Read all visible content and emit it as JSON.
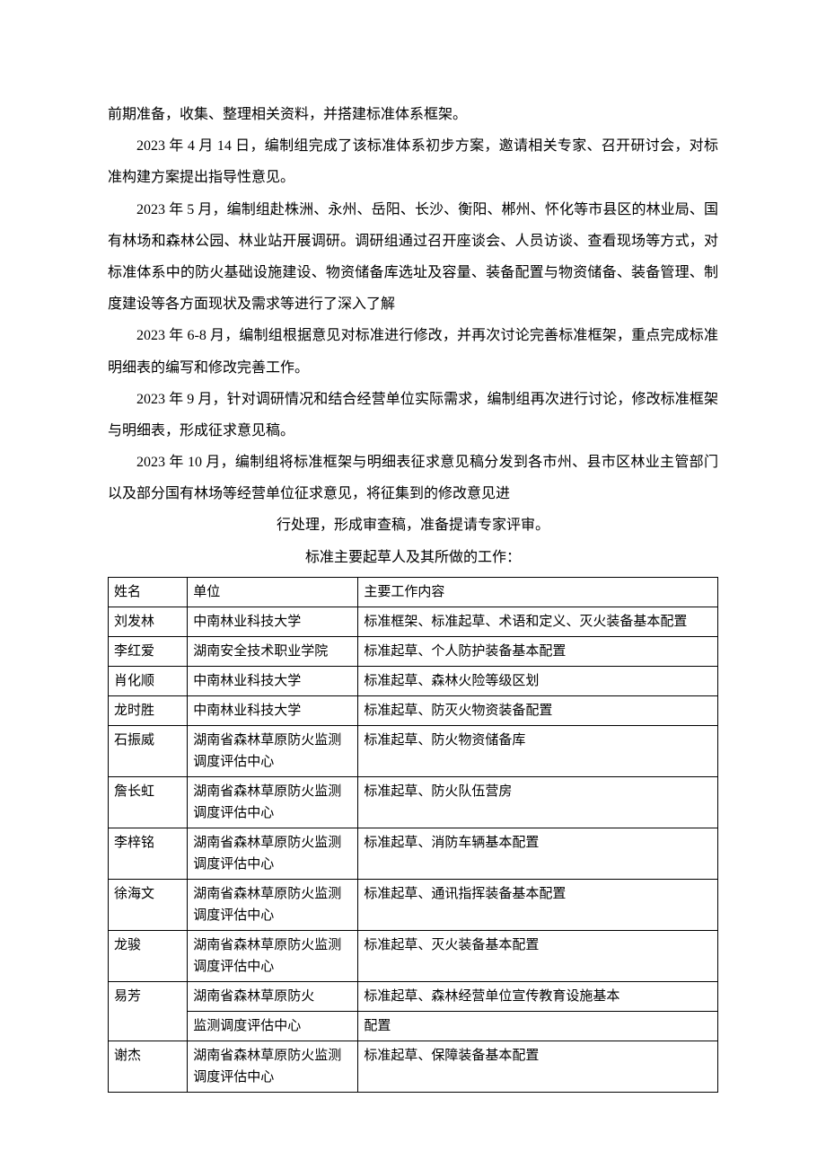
{
  "paragraphs": {
    "p0": "前期准备，收集、整理相关资料，并搭建标准体系框架。",
    "p1": "2023 年 4 月 14 日，编制组完成了该标准体系初步方案，邀请相关专家、召开研讨会，对标准构建方案提出指导性意见。",
    "p2": "2023 年 5 月，编制组赴株洲、永州、岳阳、长沙、衡阳、郴州、怀化等市县区的林业局、国有林场和森林公园、林业站开展调研。调研组通过召开座谈会、人员访谈、查看现场等方式，对标准体系中的防火基础设施建设、物资储备库选址及容量、装备配置与物资储备、装备管理、制度建设等各方面现状及需求等进行了深入了解",
    "p3": "2023 年 6-8 月，编制组根据意见对标准进行修改，并再次讨论完善标准框架，重点完成标准明细表的编写和修改完善工作。",
    "p4": "2023 年 9 月，针对调研情况和结合经营单位实际需求，编制组再次进行讨论，修改标准框架与明细表，形成征求意见稿。",
    "p5": "2023 年 10 月，编制组将标准框架与明细表征求意见稿分发到各市州、县市区林业主管部门以及部分国有林场等经营单位征求意见，将征集到的修改意见进",
    "p6": "行处理，形成审查稿，准备提请专家评审。",
    "p7": "标准主要起草人及其所做的工作："
  },
  "table": {
    "headers": {
      "name": "姓名",
      "unit": "单位",
      "work": "主要工作内容"
    },
    "rows": [
      {
        "name": "刘发林",
        "unit": "中南林业科技大学",
        "work": "标准框架、标准起草、术语和定义、灭火装备基本配置",
        "twoLine": true
      },
      {
        "name": "李红爱",
        "unit": "湖南安全技术职业学院",
        "work": "标准起草、个人防护装备基本配置",
        "twoLine": true
      },
      {
        "name": "肖化顺",
        "unit": "中南林业科技大学",
        "work": "标准起草、森林火险等级区划",
        "twoLine": false
      },
      {
        "name": "龙时胜",
        "unit": "中南林业科技大学",
        "work": "标准起草、防灭火物资装备配置",
        "twoLine": false
      },
      {
        "name": "石振威",
        "unit": "湖南省森林草原防火监测调度评估中心",
        "work": "标准起草、防火物资储备库",
        "twoLine": true
      },
      {
        "name": "詹长虹",
        "unit": "湖南省森林草原防火监测调度评估中心",
        "work": "标准起草、防火队伍营房",
        "twoLine": true
      },
      {
        "name": "李梓铭",
        "unit": "湖南省森林草原防火监测调度评估中心",
        "work": "标准起草、消防车辆基本配置",
        "twoLine": true
      },
      {
        "name": "徐海文",
        "unit": "湖南省森林草原防火监测调度评估中心",
        "work": "标准起草、通讯指挥装备基本配置",
        "twoLine": true
      },
      {
        "name": "龙骏",
        "unit": "湖南省森林草原防火监测调度评估中心",
        "work": "标准起草、灭火装备基本配置",
        "twoLine": true
      },
      {
        "name": "易芳",
        "unit": "湖南省森林草原防火监测调度评估中心",
        "work": "标准起草、森林经营单位宣传教育设施基本配置",
        "twoLine": true,
        "split": true,
        "unitLines": [
          "湖南省森林草原防火",
          "监测调度评估中心"
        ],
        "workLines": [
          "标准起草、森林经营单位宣传教育设施基本",
          "配置"
        ]
      },
      {
        "name": "谢杰",
        "unit": "湖南省森林草原防火监测调度评估中心",
        "work": "标准起草、保障装备基本配置",
        "twoLine": true
      }
    ]
  },
  "colors": {
    "text": "#000000",
    "background": "#ffffff",
    "border": "#000000"
  }
}
